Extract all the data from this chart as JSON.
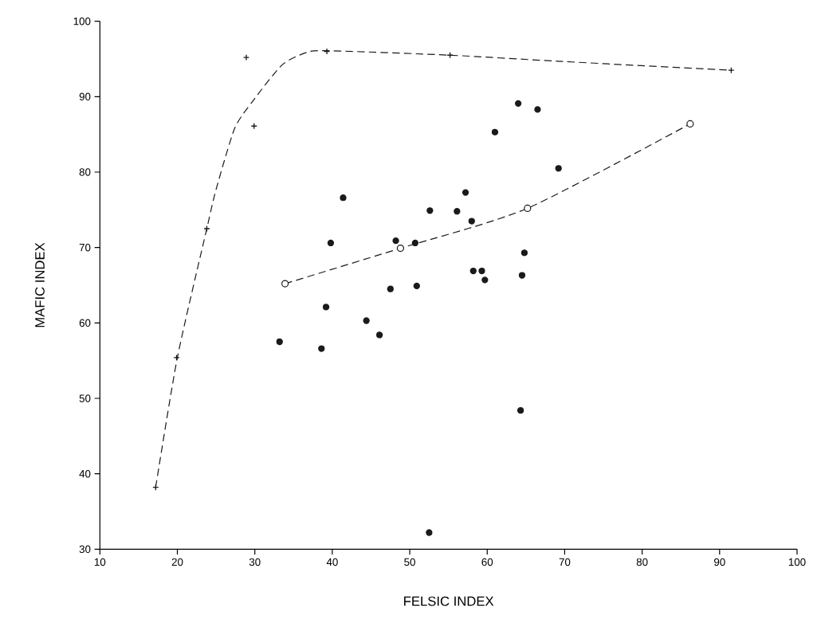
{
  "chart_data": {
    "type": "scatter",
    "xlabel": "FELSIC INDEX",
    "ylabel": "MAFIC INDEX",
    "xlim": [
      10,
      100
    ],
    "ylim": [
      30,
      100
    ],
    "xticks": [
      10,
      20,
      30,
      40,
      50,
      60,
      70,
      80,
      90,
      100
    ],
    "yticks": [
      30,
      40,
      50,
      60,
      70,
      80,
      90,
      100
    ],
    "series": [
      {
        "marker": "circle",
        "color": "#1a1a1a",
        "x": [
          33.2,
          38.6,
          39.2,
          39.8,
          41.4,
          44.4,
          46.1,
          47.5,
          48.2,
          50.7,
          50.9,
          52.6,
          52.5,
          56.1,
          57.2,
          58.0,
          58.2,
          59.3,
          59.7,
          64.5,
          64.8,
          64.3,
          69.2,
          61.0,
          64.0,
          66.5
        ],
        "values": [
          57.5,
          56.6,
          62.1,
          70.6,
          76.6,
          60.3,
          58.4,
          64.5,
          70.9,
          70.6,
          64.9,
          74.9,
          32.2,
          74.8,
          77.3,
          73.5,
          66.9,
          66.9,
          65.7,
          66.3,
          69.3,
          48.4,
          80.5,
          85.3,
          89.1,
          88.3
        ]
      },
      {
        "marker": "cross",
        "color": "#1a1a1a",
        "x": [
          17.2,
          19.9,
          23.8,
          28.9,
          29.9,
          39.3,
          55.2,
          91.5
        ],
        "values": [
          38.2,
          55.4,
          72.5,
          95.2,
          86.1,
          96.0,
          95.5,
          93.5
        ]
      },
      {
        "type": "line",
        "marker": "none",
        "line_style": "dashed",
        "color": "#1a1a1a",
        "x": [
          17.2,
          20.0,
          23.8,
          25.0,
          27.4,
          29.8,
          33.5,
          36.5,
          39.3,
          55.2,
          69.1,
          91.5
        ],
        "values": [
          38.2,
          55.4,
          72.5,
          77.7,
          85.8,
          89.5,
          94.2,
          95.8,
          96.1,
          95.5,
          94.7,
          93.5
        ]
      },
      {
        "type": "line",
        "marker": "circle",
        "line_style": "dashed",
        "color": "#1a1a1a",
        "x": [
          33.9,
          48.8,
          65.2,
          86.2
        ],
        "values": [
          65.2,
          69.9,
          75.2,
          86.4
        ]
      }
    ]
  }
}
